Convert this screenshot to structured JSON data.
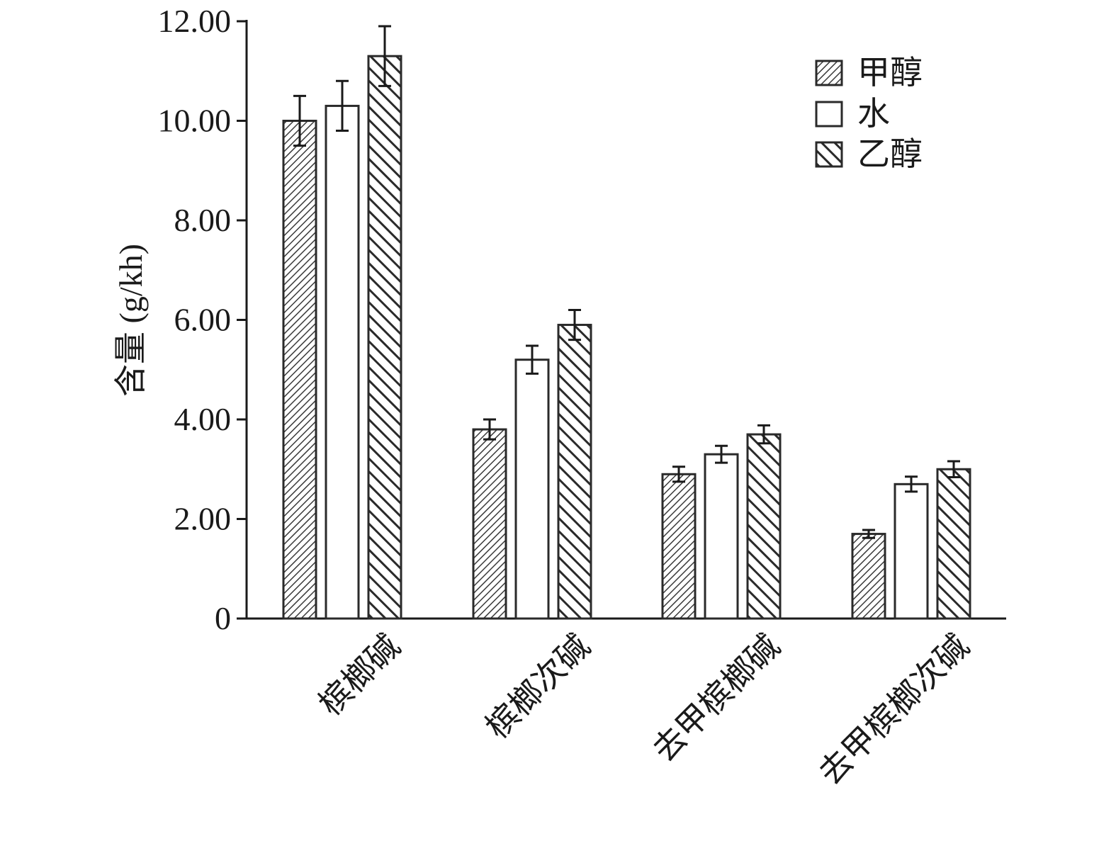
{
  "chart_data": {
    "type": "bar",
    "title": "",
    "xlabel": "",
    "ylabel": "含量 (g/kh)",
    "ylim": [
      0,
      12
    ],
    "yticks": [
      0,
      2,
      4,
      6,
      8,
      10,
      12
    ],
    "ytick_labels": [
      "0",
      "2.00",
      "4.00",
      "6.00",
      "8.00",
      "10.00",
      "12.00"
    ],
    "categories": [
      "槟榔碱",
      "槟榔次碱",
      "去甲槟榔碱",
      "去甲槟榔次碱"
    ],
    "series": [
      {
        "name": "甲醇",
        "pattern": "fine-hatch",
        "values": [
          10.0,
          3.8,
          2.9,
          1.7
        ],
        "errors": [
          0.5,
          0.2,
          0.15,
          0.08
        ]
      },
      {
        "name": "水",
        "pattern": "white",
        "values": [
          10.3,
          5.2,
          3.3,
          2.7
        ],
        "errors": [
          0.5,
          0.28,
          0.17,
          0.15
        ]
      },
      {
        "name": "乙醇",
        "pattern": "coarse-hatch",
        "values": [
          11.3,
          5.9,
          3.7,
          3.0
        ],
        "errors": [
          0.6,
          0.3,
          0.18,
          0.16
        ]
      }
    ],
    "legend_position": "top-right",
    "grid": false,
    "colors": {
      "axis": "#1a1a1a",
      "bar_stroke": "#2a2a2a",
      "fill_white": "#ffffff"
    }
  }
}
